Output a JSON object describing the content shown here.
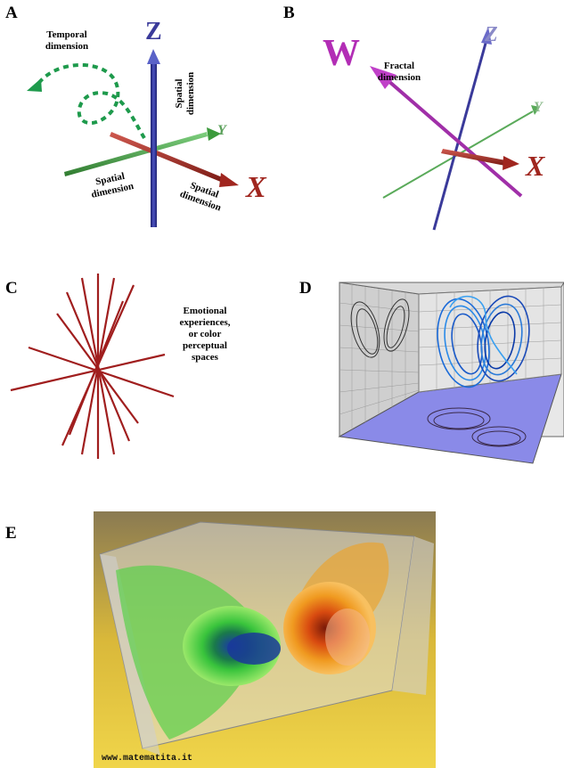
{
  "panels": {
    "A": {
      "letter": "A",
      "temporal_label": "Temporal dimension",
      "spatial_vertical_label": "Spatial dimension",
      "spatial_left_label": "Spatial dimension",
      "spatial_right_label": "Spatial dimension",
      "axis_z": "Z",
      "axis_y": "Y",
      "axis_x": "X",
      "colors": {
        "z": "#2a2f8e",
        "y": "#3c9a3c",
        "x": "#a0261f",
        "temporal": "#1e9a4c"
      }
    },
    "B": {
      "letter": "B",
      "fractal_label": "Fractal dimension",
      "axis_w": "W",
      "axis_z": "Z",
      "axis_y": "Y",
      "axis_x": "X",
      "colors": {
        "w": "#b22db5",
        "z": "#3a3a9a",
        "y": "#5aaa5a",
        "x": "#a0261f"
      }
    },
    "C": {
      "letter": "C",
      "label": "Emotional experiences, or color perceptual spaces",
      "colors": {
        "lines": "#a01e1e"
      }
    },
    "D": {
      "letter": "D",
      "colors": {
        "floor": "#8888e0",
        "trajectory": "#1a6ad8",
        "shadow": "#333333"
      }
    },
    "E": {
      "letter": "E",
      "credit": "www.matematita.it",
      "colors": {
        "bg_top": "#9a8a5a",
        "bg_bottom": "#e8c830",
        "green": "#39c43c",
        "orange": "#f08a10",
        "blue": "#1a3aa8"
      }
    }
  }
}
